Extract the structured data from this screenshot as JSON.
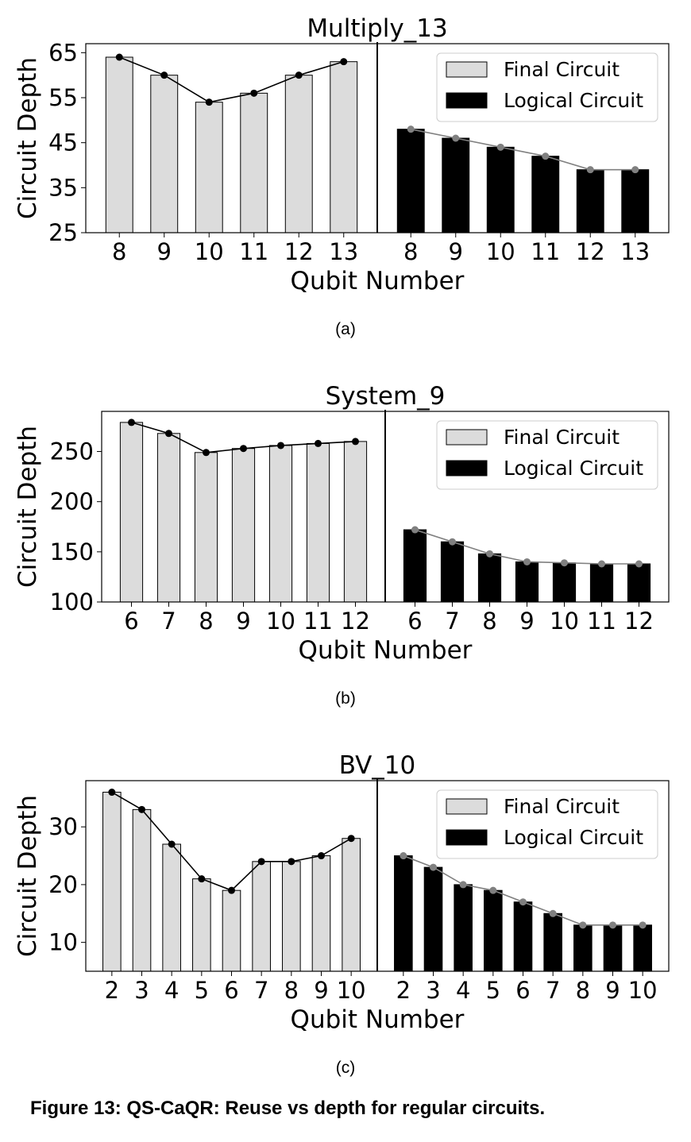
{
  "chart_data": [
    {
      "type": "bar",
      "title": "Multiply_13",
      "xlabel": "Qubit Number",
      "ylabel": "Circuit Depth",
      "ylim": [
        25,
        67
      ],
      "yticks": [
        25,
        35,
        45,
        55,
        65
      ],
      "legend": {
        "placement": "top-right",
        "entries": [
          "Final Circuit",
          "Logical Circuit"
        ]
      },
      "series": [
        {
          "name": "Final Circuit",
          "categories": [
            "8",
            "9",
            "10",
            "11",
            "12",
            "13"
          ],
          "values": [
            64,
            60,
            54,
            56,
            60,
            63
          ],
          "color": "#dcdcdc"
        },
        {
          "name": "Logical Circuit",
          "categories": [
            "8",
            "9",
            "10",
            "11",
            "12",
            "13"
          ],
          "values": [
            48,
            46,
            44,
            42,
            39,
            39
          ],
          "color": "#000000"
        }
      ],
      "grid": false
    },
    {
      "type": "bar",
      "title": "System_9",
      "xlabel": "Qubit Number",
      "ylabel": "Circuit Depth",
      "ylim": [
        100,
        290
      ],
      "yticks": [
        100,
        150,
        200,
        250
      ],
      "legend": {
        "placement": "top-right",
        "entries": [
          "Final Circuit",
          "Logical Circuit"
        ]
      },
      "series": [
        {
          "name": "Final Circuit",
          "categories": [
            "6",
            "7",
            "8",
            "9",
            "10",
            "11",
            "12"
          ],
          "values": [
            279,
            268,
            249,
            253,
            256,
            258,
            260
          ],
          "color": "#dcdcdc"
        },
        {
          "name": "Logical Circuit",
          "categories": [
            "6",
            "7",
            "8",
            "9",
            "10",
            "11",
            "12"
          ],
          "values": [
            172,
            160,
            148,
            140,
            139,
            138,
            138
          ],
          "color": "#000000"
        }
      ],
      "grid": false
    },
    {
      "type": "bar",
      "title": "BV_10",
      "xlabel": "Qubit Number",
      "ylabel": "Circuit Depth",
      "ylim": [
        5,
        38
      ],
      "yticks": [
        10,
        20,
        30
      ],
      "legend": {
        "placement": "top-right",
        "entries": [
          "Final Circuit",
          "Logical Circuit"
        ]
      },
      "series": [
        {
          "name": "Final Circuit",
          "categories": [
            "2",
            "3",
            "4",
            "5",
            "6",
            "7",
            "8",
            "9",
            "10"
          ],
          "values": [
            36,
            33,
            27,
            21,
            19,
            24,
            24,
            25,
            28
          ],
          "color": "#dcdcdc"
        },
        {
          "name": "Logical Circuit",
          "categories": [
            "2",
            "3",
            "4",
            "5",
            "6",
            "7",
            "8",
            "9",
            "10"
          ],
          "values": [
            25,
            23,
            20,
            19,
            17,
            15,
            13,
            13,
            13
          ],
          "color": "#000000"
        }
      ],
      "grid": false
    }
  ],
  "subcaptions": [
    "(a)",
    "(b)",
    "(c)"
  ],
  "caption": "Figure 13: QS-CaQR: Reuse vs depth for regular circuits."
}
